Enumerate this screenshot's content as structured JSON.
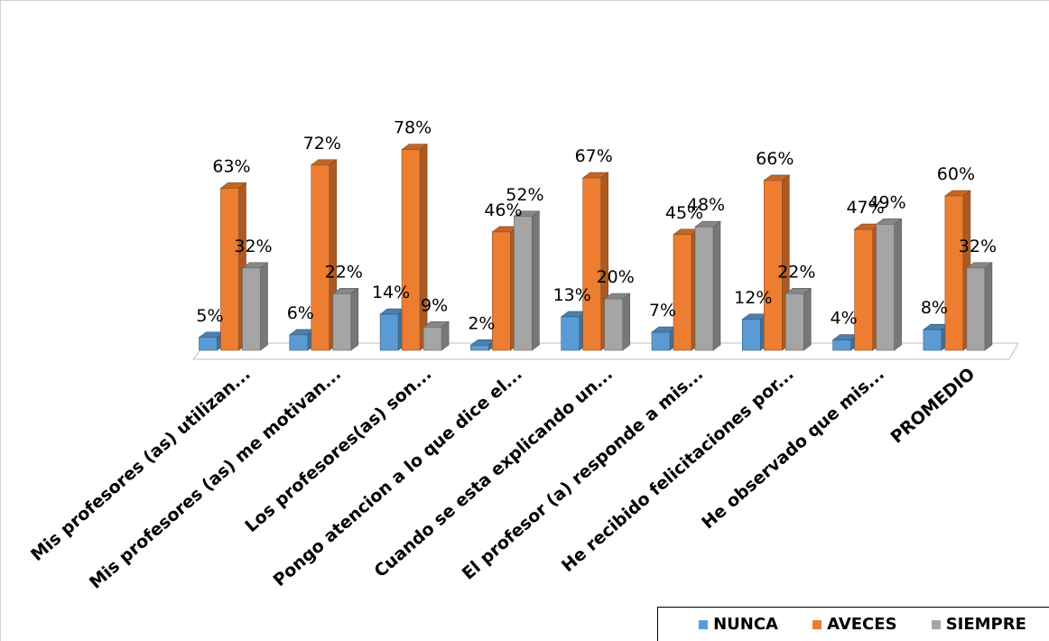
{
  "chart_data": {
    "type": "bar",
    "style": "3d-clustered-column",
    "categories": [
      "Mis profesores (as) utilizan...",
      "Mis profesores (as) me motivan...",
      "Los profesores(as) son...",
      "Pongo atencion a lo que dice el...",
      "Cuando se esta explicando un...",
      "El profesor (a) responde a mis...",
      "He recibido felicitaciones por...",
      "He observado que mis...",
      "PROMEDIO"
    ],
    "series": [
      {
        "name": "NUNCA",
        "color": "#5B9BD5",
        "values": [
          5,
          6,
          14,
          2,
          13,
          7,
          12,
          4,
          8
        ],
        "labels": [
          "5%",
          "6%",
          "14%",
          "2%",
          "13%",
          "7%",
          "12%",
          "4%",
          "8%"
        ]
      },
      {
        "name": "AVECES",
        "color": "#ED7D31",
        "values": [
          63,
          72,
          78,
          46,
          67,
          45,
          66,
          47,
          60
        ],
        "labels": [
          "63%",
          "72%",
          "78%",
          "46%",
          "67%",
          "45%",
          "66%",
          "47%",
          "60%"
        ]
      },
      {
        "name": "SIEMPRE",
        "color": "#A5A5A5",
        "values": [
          32,
          22,
          9,
          52,
          20,
          48,
          22,
          49,
          32
        ],
        "labels": [
          "32%",
          "22%",
          "9%",
          "52%",
          "20%",
          "48%",
          "22%",
          "49%",
          "32%"
        ]
      }
    ],
    "ylim": [
      0,
      90
    ],
    "grid": false,
    "legend": "bottom-right"
  }
}
